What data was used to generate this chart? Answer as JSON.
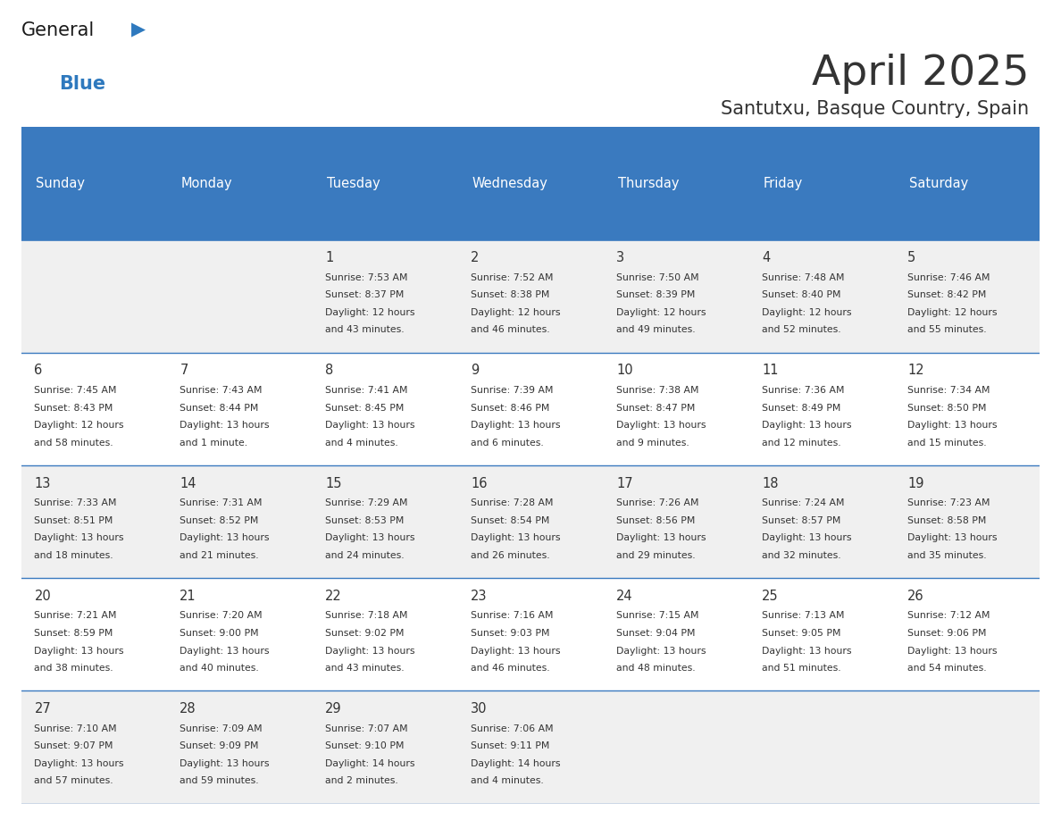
{
  "title": "April 2025",
  "subtitle": "Santutxu, Basque Country, Spain",
  "days_of_week": [
    "Sunday",
    "Monday",
    "Tuesday",
    "Wednesday",
    "Thursday",
    "Friday",
    "Saturday"
  ],
  "header_bg": "#3a7abf",
  "header_text": "#ffffff",
  "cell_bg_light": "#f0f0f0",
  "cell_bg_white": "#ffffff",
  "line_color": "#3a7abf",
  "text_color": "#333333",
  "logo_general_color": "#1a1a1a",
  "logo_blue_color": "#2e79be",
  "calendar_data": [
    [
      null,
      null,
      {
        "day": 1,
        "sunrise": "7:53 AM",
        "sunset": "8:37 PM",
        "daylight_line1": "Daylight: 12 hours",
        "daylight_line2": "and 43 minutes."
      },
      {
        "day": 2,
        "sunrise": "7:52 AM",
        "sunset": "8:38 PM",
        "daylight_line1": "Daylight: 12 hours",
        "daylight_line2": "and 46 minutes."
      },
      {
        "day": 3,
        "sunrise": "7:50 AM",
        "sunset": "8:39 PM",
        "daylight_line1": "Daylight: 12 hours",
        "daylight_line2": "and 49 minutes."
      },
      {
        "day": 4,
        "sunrise": "7:48 AM",
        "sunset": "8:40 PM",
        "daylight_line1": "Daylight: 12 hours",
        "daylight_line2": "and 52 minutes."
      },
      {
        "day": 5,
        "sunrise": "7:46 AM",
        "sunset": "8:42 PM",
        "daylight_line1": "Daylight: 12 hours",
        "daylight_line2": "and 55 minutes."
      }
    ],
    [
      {
        "day": 6,
        "sunrise": "7:45 AM",
        "sunset": "8:43 PM",
        "daylight_line1": "Daylight: 12 hours",
        "daylight_line2": "and 58 minutes."
      },
      {
        "day": 7,
        "sunrise": "7:43 AM",
        "sunset": "8:44 PM",
        "daylight_line1": "Daylight: 13 hours",
        "daylight_line2": "and 1 minute."
      },
      {
        "day": 8,
        "sunrise": "7:41 AM",
        "sunset": "8:45 PM",
        "daylight_line1": "Daylight: 13 hours",
        "daylight_line2": "and 4 minutes."
      },
      {
        "day": 9,
        "sunrise": "7:39 AM",
        "sunset": "8:46 PM",
        "daylight_line1": "Daylight: 13 hours",
        "daylight_line2": "and 6 minutes."
      },
      {
        "day": 10,
        "sunrise": "7:38 AM",
        "sunset": "8:47 PM",
        "daylight_line1": "Daylight: 13 hours",
        "daylight_line2": "and 9 minutes."
      },
      {
        "day": 11,
        "sunrise": "7:36 AM",
        "sunset": "8:49 PM",
        "daylight_line1": "Daylight: 13 hours",
        "daylight_line2": "and 12 minutes."
      },
      {
        "day": 12,
        "sunrise": "7:34 AM",
        "sunset": "8:50 PM",
        "daylight_line1": "Daylight: 13 hours",
        "daylight_line2": "and 15 minutes."
      }
    ],
    [
      {
        "day": 13,
        "sunrise": "7:33 AM",
        "sunset": "8:51 PM",
        "daylight_line1": "Daylight: 13 hours",
        "daylight_line2": "and 18 minutes."
      },
      {
        "day": 14,
        "sunrise": "7:31 AM",
        "sunset": "8:52 PM",
        "daylight_line1": "Daylight: 13 hours",
        "daylight_line2": "and 21 minutes."
      },
      {
        "day": 15,
        "sunrise": "7:29 AM",
        "sunset": "8:53 PM",
        "daylight_line1": "Daylight: 13 hours",
        "daylight_line2": "and 24 minutes."
      },
      {
        "day": 16,
        "sunrise": "7:28 AM",
        "sunset": "8:54 PM",
        "daylight_line1": "Daylight: 13 hours",
        "daylight_line2": "and 26 minutes."
      },
      {
        "day": 17,
        "sunrise": "7:26 AM",
        "sunset": "8:56 PM",
        "daylight_line1": "Daylight: 13 hours",
        "daylight_line2": "and 29 minutes."
      },
      {
        "day": 18,
        "sunrise": "7:24 AM",
        "sunset": "8:57 PM",
        "daylight_line1": "Daylight: 13 hours",
        "daylight_line2": "and 32 minutes."
      },
      {
        "day": 19,
        "sunrise": "7:23 AM",
        "sunset": "8:58 PM",
        "daylight_line1": "Daylight: 13 hours",
        "daylight_line2": "and 35 minutes."
      }
    ],
    [
      {
        "day": 20,
        "sunrise": "7:21 AM",
        "sunset": "8:59 PM",
        "daylight_line1": "Daylight: 13 hours",
        "daylight_line2": "and 38 minutes."
      },
      {
        "day": 21,
        "sunrise": "7:20 AM",
        "sunset": "9:00 PM",
        "daylight_line1": "Daylight: 13 hours",
        "daylight_line2": "and 40 minutes."
      },
      {
        "day": 22,
        "sunrise": "7:18 AM",
        "sunset": "9:02 PM",
        "daylight_line1": "Daylight: 13 hours",
        "daylight_line2": "and 43 minutes."
      },
      {
        "day": 23,
        "sunrise": "7:16 AM",
        "sunset": "9:03 PM",
        "daylight_line1": "Daylight: 13 hours",
        "daylight_line2": "and 46 minutes."
      },
      {
        "day": 24,
        "sunrise": "7:15 AM",
        "sunset": "9:04 PM",
        "daylight_line1": "Daylight: 13 hours",
        "daylight_line2": "and 48 minutes."
      },
      {
        "day": 25,
        "sunrise": "7:13 AM",
        "sunset": "9:05 PM",
        "daylight_line1": "Daylight: 13 hours",
        "daylight_line2": "and 51 minutes."
      },
      {
        "day": 26,
        "sunrise": "7:12 AM",
        "sunset": "9:06 PM",
        "daylight_line1": "Daylight: 13 hours",
        "daylight_line2": "and 54 minutes."
      }
    ],
    [
      {
        "day": 27,
        "sunrise": "7:10 AM",
        "sunset": "9:07 PM",
        "daylight_line1": "Daylight: 13 hours",
        "daylight_line2": "and 57 minutes."
      },
      {
        "day": 28,
        "sunrise": "7:09 AM",
        "sunset": "9:09 PM",
        "daylight_line1": "Daylight: 13 hours",
        "daylight_line2": "and 59 minutes."
      },
      {
        "day": 29,
        "sunrise": "7:07 AM",
        "sunset": "9:10 PM",
        "daylight_line1": "Daylight: 14 hours",
        "daylight_line2": "and 2 minutes."
      },
      {
        "day": 30,
        "sunrise": "7:06 AM",
        "sunset": "9:11 PM",
        "daylight_line1": "Daylight: 14 hours",
        "daylight_line2": "and 4 minutes."
      },
      null,
      null,
      null
    ]
  ]
}
